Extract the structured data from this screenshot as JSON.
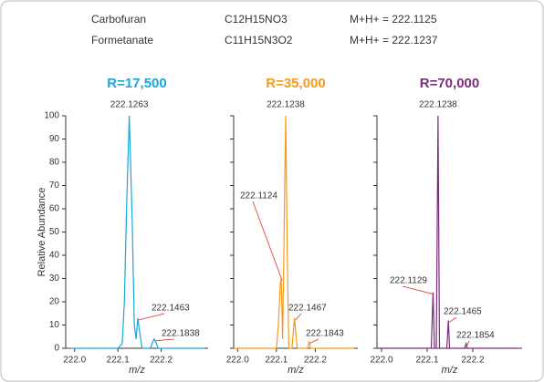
{
  "compounds": [
    {
      "name": "Carbofuran",
      "formula": "C12H15NO3",
      "mass": "M+H+ = 222.1125"
    },
    {
      "name": "Formetanate",
      "formula": "C11H15N3O2",
      "mass": "M+H+ = 222.1237"
    }
  ],
  "chart_data": [
    {
      "type": "line",
      "title": "R=17,500",
      "color": "#1ba6dc",
      "ylabel": "Relative Abundance",
      "xlabel": "m/z",
      "x": [
        221.99,
        222.1,
        222.11,
        222.115,
        222.12,
        222.1263,
        222.133,
        222.138,
        222.142,
        222.146,
        222.151,
        222.156,
        222.175,
        222.179,
        222.1838,
        222.189,
        222.193,
        222.3
      ],
      "values": [
        0,
        0,
        2,
        20,
        60,
        100,
        55,
        10,
        4,
        13,
        6,
        0,
        0,
        2,
        4,
        2,
        0,
        0
      ],
      "peak_labels": [
        222.1263,
        222.1463,
        222.1838
      ],
      "xlim": [
        221.99,
        222.3
      ],
      "xticks": [
        {
          "value": 222,
          "label": "222.0"
        },
        222.1,
        222.2
      ],
      "ylim": [
        0,
        100
      ],
      "yticks": [
        0,
        10,
        20,
        30,
        40,
        50,
        60,
        70,
        80,
        90,
        100
      ]
    },
    {
      "type": "line",
      "title": "R=35,000",
      "color": "#f59a1f",
      "xlabel": "m/z",
      "x": [
        221.99,
        222.1,
        222.105,
        222.11,
        222.1124,
        222.116,
        222.119,
        222.1238,
        222.128,
        222.132,
        222.14,
        222.143,
        222.1467,
        222.15,
        222.154,
        222.18,
        222.1843,
        222.188,
        222.3
      ],
      "values": [
        0,
        0,
        10,
        28,
        30,
        4,
        40,
        100,
        40,
        0,
        0,
        6,
        13,
        6,
        0,
        0,
        3,
        0,
        0
      ],
      "peak_labels": [
        222.1238,
        222.1124,
        222.1467,
        222.1843
      ],
      "xlim": [
        221.99,
        222.3
      ],
      "xticks": [
        {
          "value": 222,
          "label": "222.0"
        },
        222.1,
        222.2
      ],
      "ylim": [
        0,
        100
      ],
      "yticks": [
        0,
        10,
        20,
        30,
        40,
        50,
        60,
        70,
        80,
        90,
        100
      ]
    },
    {
      "type": "line",
      "title": "R=70,000",
      "color": "#7b2d7d",
      "xlabel": "m/z",
      "x": [
        221.99,
        222.109,
        222.1129,
        222.116,
        222.12,
        222.1238,
        222.127,
        222.143,
        222.1465,
        222.149,
        222.182,
        222.1854,
        222.188,
        222.3
      ],
      "values": [
        0,
        0,
        24,
        0,
        0,
        100,
        0,
        0,
        12,
        0,
        0,
        2,
        0,
        0
      ],
      "peak_labels": [
        222.1238,
        222.1129,
        222.1465,
        222.1854
      ],
      "xlim": [
        221.99,
        222.3
      ],
      "xticks": [
        {
          "value": 222,
          "label": "222.0"
        },
        222.1,
        222.2
      ],
      "ylim": [
        0,
        100
      ],
      "yticks": [
        0,
        10,
        20,
        30,
        40,
        50,
        60,
        70,
        80,
        90,
        100
      ]
    }
  ]
}
